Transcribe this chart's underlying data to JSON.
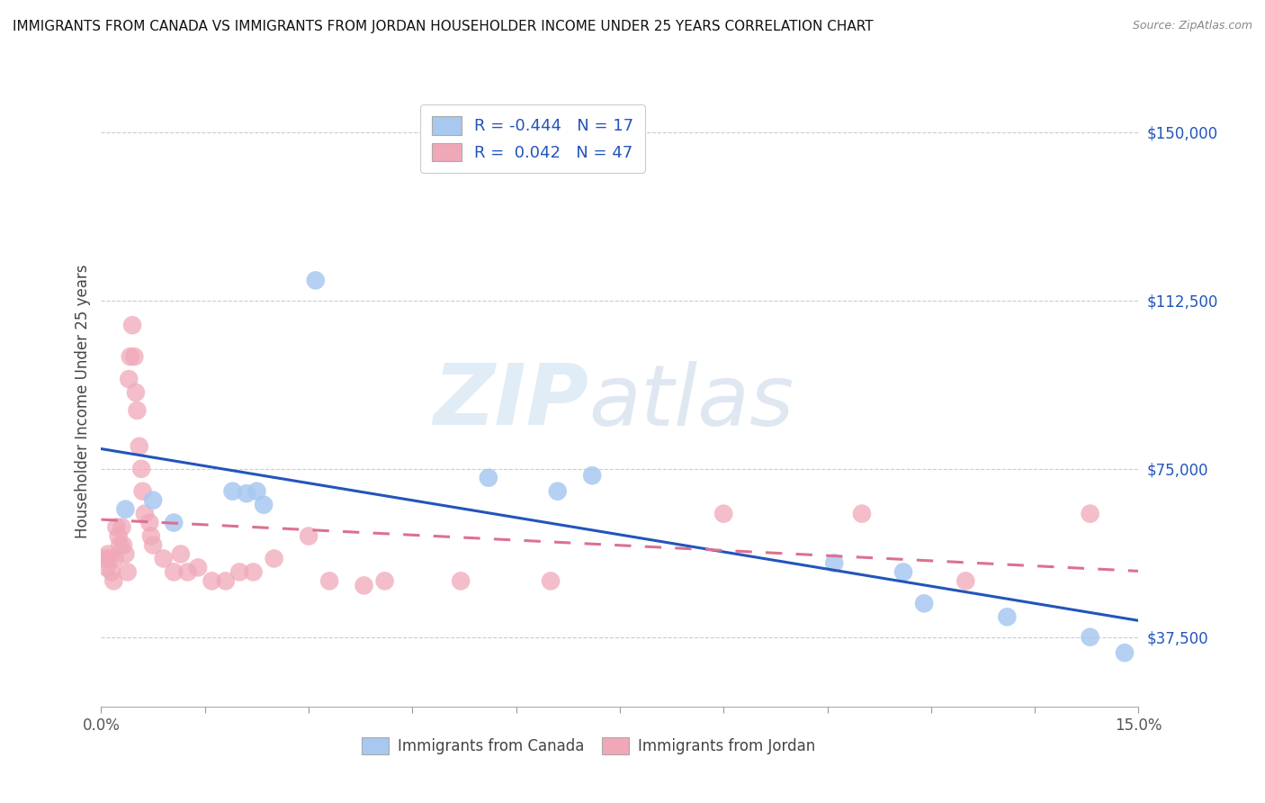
{
  "title": "IMMIGRANTS FROM CANADA VS IMMIGRANTS FROM JORDAN HOUSEHOLDER INCOME UNDER 25 YEARS CORRELATION CHART",
  "source": "Source: ZipAtlas.com",
  "ylabel": "Householder Income Under 25 years",
  "xlim": [
    0.0,
    15.0
  ],
  "ylim": [
    22000,
    158000
  ],
  "yticks": [
    37500,
    75000,
    112500,
    150000
  ],
  "ytick_labels": [
    "$37,500",
    "$75,000",
    "$112,500",
    "$150,000"
  ],
  "xticks": [
    0,
    1.5,
    3.0,
    4.5,
    6.0,
    7.5,
    9.0,
    10.5,
    12.0,
    13.5,
    15.0
  ],
  "xtick_labels": [
    "0.0%",
    "",
    "",
    "",
    "",
    "",
    "",
    "",
    "",
    "",
    "15.0%"
  ],
  "canada_R": "-0.444",
  "canada_N": "17",
  "jordan_R": "0.042",
  "jordan_N": "47",
  "canada_color": "#a8c8f0",
  "jordan_color": "#f0a8b8",
  "canada_line_color": "#2255bb",
  "jordan_line_color": "#dd7090",
  "watermark_zip": "ZIP",
  "watermark_atlas": "atlas",
  "bg_color": "#ffffff",
  "canada_points_x": [
    0.35,
    0.75,
    1.05,
    1.9,
    2.1,
    2.25,
    2.35,
    3.1,
    5.6,
    6.6,
    7.1,
    10.6,
    11.6,
    11.9,
    13.1,
    14.3,
    14.8
  ],
  "canada_points_y": [
    66000,
    68000,
    63000,
    70000,
    69500,
    70000,
    67000,
    117000,
    73000,
    70000,
    73500,
    54000,
    52000,
    45000,
    42000,
    37500,
    34000
  ],
  "jordan_points_x": [
    0.05,
    0.08,
    0.1,
    0.12,
    0.15,
    0.18,
    0.2,
    0.22,
    0.25,
    0.27,
    0.3,
    0.32,
    0.35,
    0.38,
    0.4,
    0.42,
    0.45,
    0.48,
    0.5,
    0.52,
    0.55,
    0.58,
    0.6,
    0.63,
    0.7,
    0.72,
    0.75,
    0.9,
    1.05,
    1.15,
    1.25,
    1.4,
    1.6,
    1.8,
    2.0,
    2.2,
    2.5,
    3.0,
    3.3,
    3.8,
    4.1,
    5.2,
    6.5,
    9.0,
    11.0,
    12.5,
    14.3
  ],
  "jordan_points_y": [
    55000,
    53000,
    56000,
    55000,
    52000,
    50000,
    55000,
    62000,
    60000,
    58000,
    62000,
    58000,
    56000,
    52000,
    95000,
    100000,
    107000,
    100000,
    92000,
    88000,
    80000,
    75000,
    70000,
    65000,
    63000,
    60000,
    58000,
    55000,
    52000,
    56000,
    52000,
    53000,
    50000,
    50000,
    52000,
    52000,
    55000,
    60000,
    50000,
    49000,
    50000,
    50000,
    50000,
    65000,
    65000,
    50000,
    65000
  ]
}
